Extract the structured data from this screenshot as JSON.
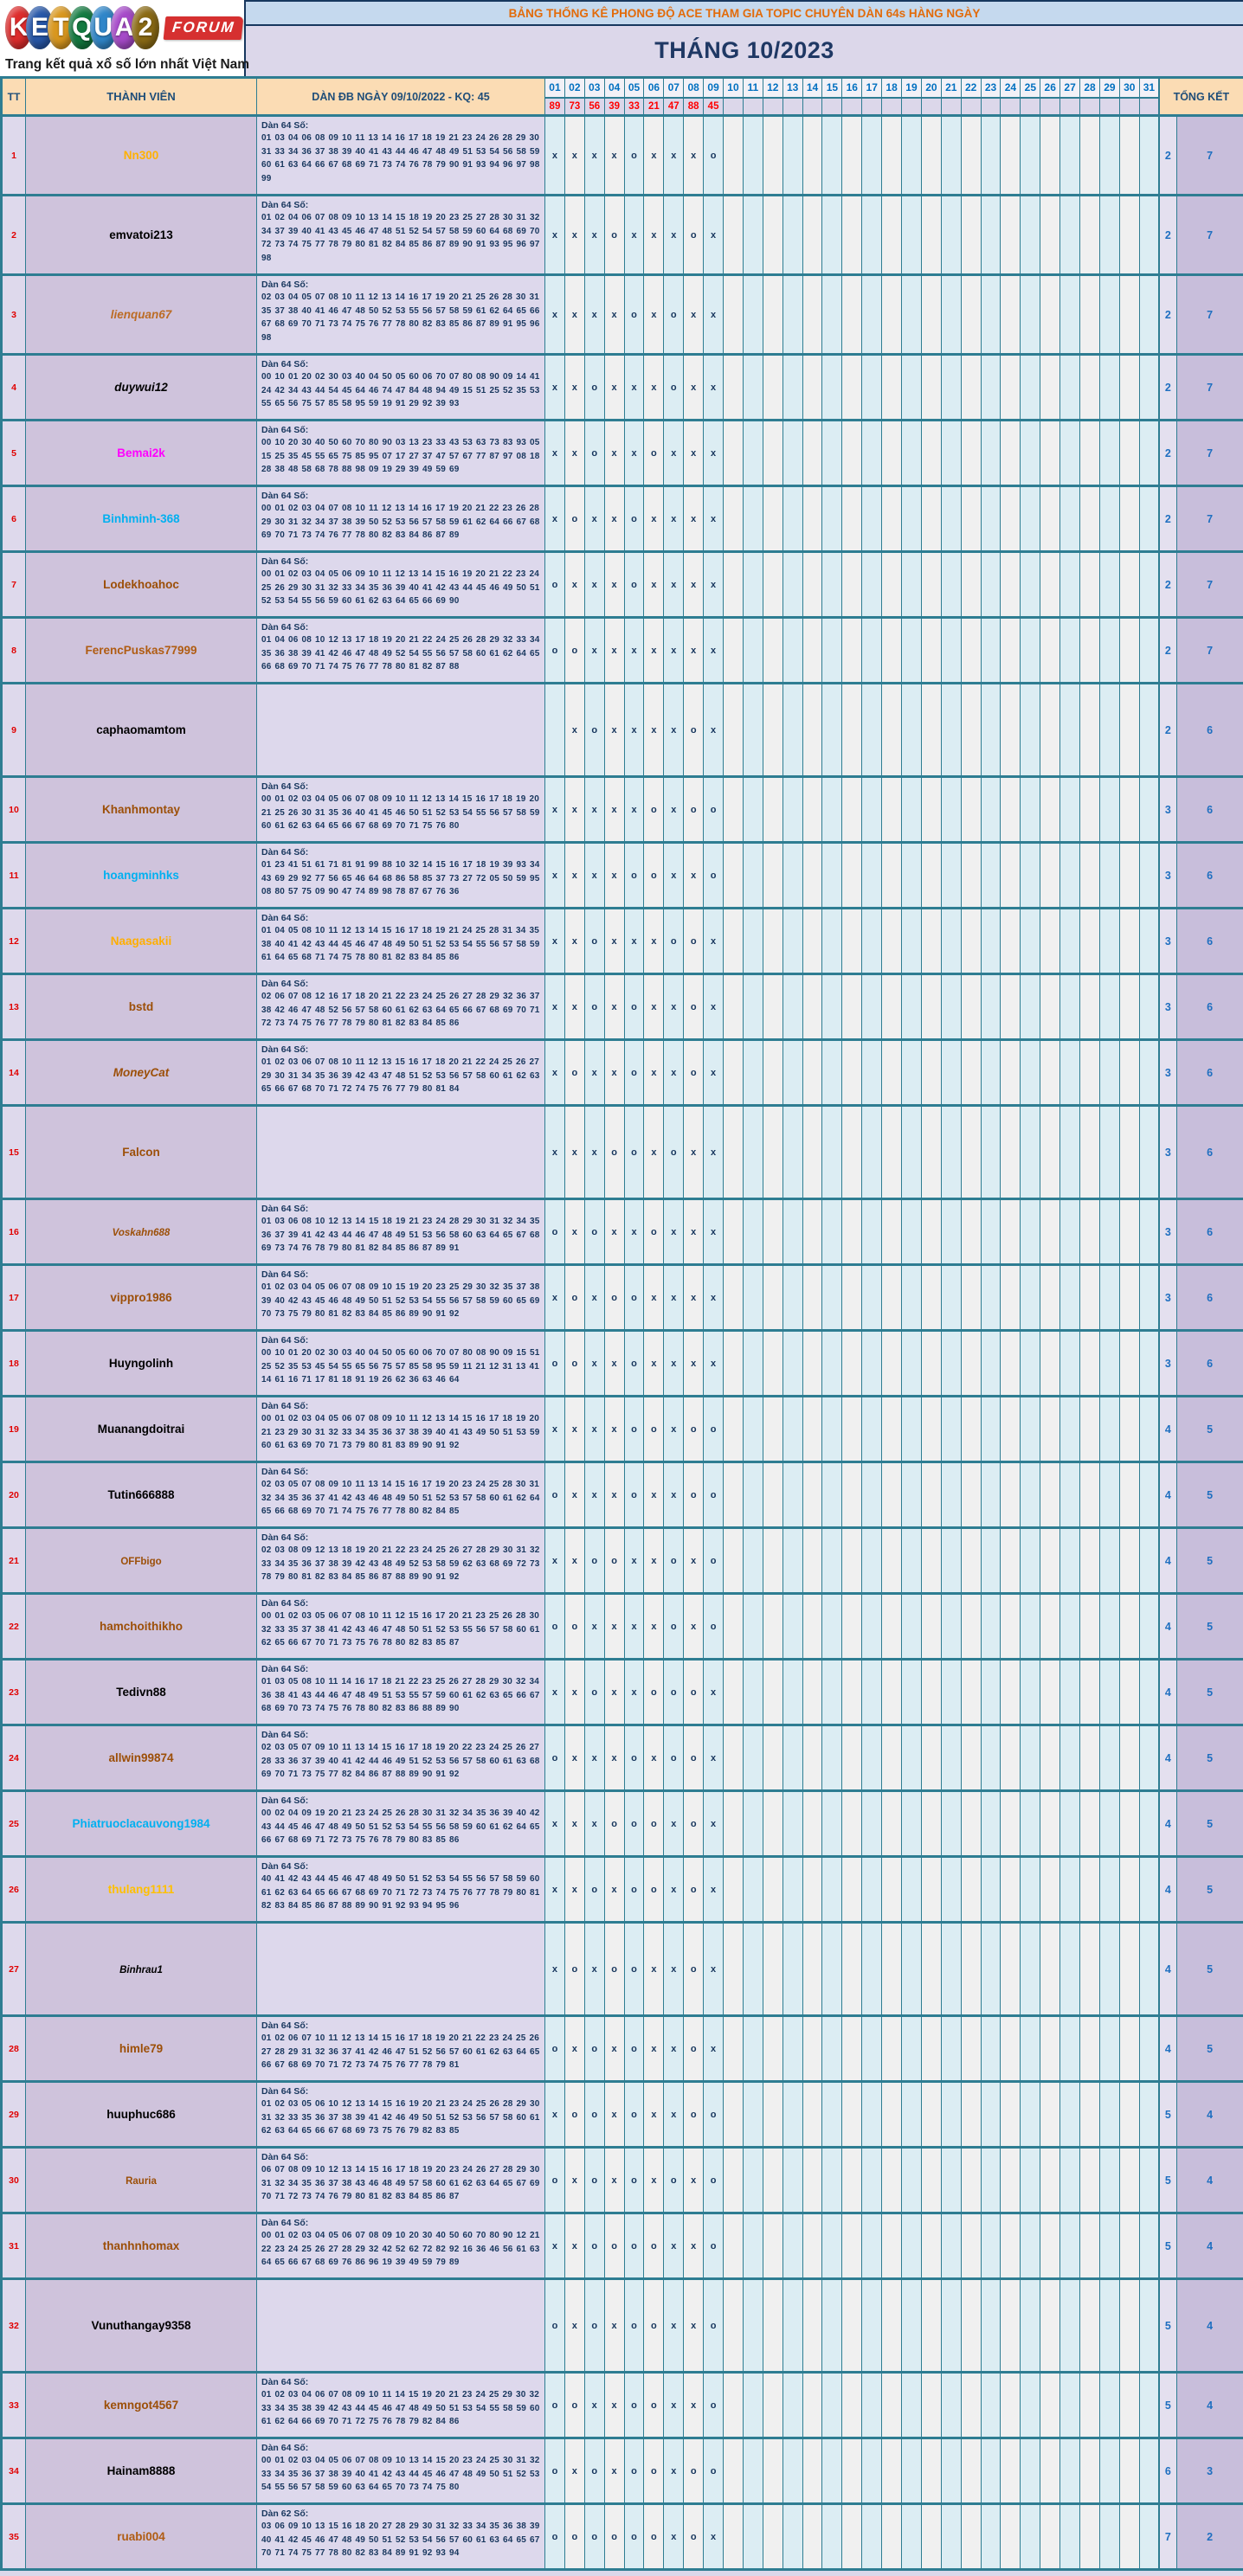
{
  "palette": {
    "border_teal": "#2e7d92",
    "peach": "#fbdcb4",
    "banner_bg": "#c5d9ee",
    "banner_text": "#e26b0a",
    "navy": "#17375e",
    "title_navy": "#1f3864",
    "day_blue": "#0070c0",
    "result_red": "#ff0000",
    "tt_red": "#e00000",
    "grid_cyan": "#dcedf3",
    "grid_gray": "#f0f0f0",
    "mark_navy": "#17365d",
    "member_cell": "#cfc3dc",
    "dan_cell": "#ddd8ec",
    "tk_blue": "#1f6fc0",
    "tk1_bg": "#e4e0ef",
    "tk2_bg": "#c8bedb",
    "page_bg": "#dcd7ea"
  },
  "logo": {
    "letters": [
      {
        "ch": "K",
        "color": "#dd2c2c"
      },
      {
        "ch": "E",
        "color": "#2757a8"
      },
      {
        "ch": "T",
        "color": "#d9971e"
      },
      {
        "ch": "Q",
        "color": "#137a40"
      },
      {
        "ch": "U",
        "color": "#2f86c9"
      },
      {
        "ch": "A",
        "color": "#a64ac9"
      },
      {
        "ch": "2",
        "color": "#8a6a14"
      }
    ],
    "forum_label": "FORUM",
    "tagline": "Trang kết quả xổ số lớn nhất Việt Nam"
  },
  "header": {
    "banner": "BẢNG THỐNG KÊ PHONG ĐỘ ACE THAM GIA TOPIC CHUYÊN DÀN 64s HÀNG NGÀY",
    "month_title": "THÁNG 10/2023",
    "col_tt": "TT",
    "col_member": "THÀNH VIÊN",
    "col_dan": "DÀN ĐB NGÀY 09/10/2022 - KQ: 45",
    "col_total": "TỔNG KẾT",
    "days": [
      "01",
      "02",
      "03",
      "04",
      "05",
      "06",
      "07",
      "08",
      "09",
      "10",
      "11",
      "12",
      "13",
      "14",
      "15",
      "16",
      "17",
      "18",
      "19",
      "20",
      "21",
      "22",
      "23",
      "24",
      "25",
      "26",
      "27",
      "28",
      "29",
      "30",
      "31"
    ],
    "results": [
      "89",
      "73",
      "56",
      "39",
      "33",
      "21",
      "47",
      "88",
      "45",
      "",
      "",
      "",
      "",
      "",
      "",
      "",
      "",
      "",
      "",
      "",
      "",
      "",
      "",
      "",
      "",
      "",
      "",
      "",
      "",
      "",
      ""
    ]
  },
  "rows": [
    {
      "tt": "1",
      "name": "Nn300",
      "color": "#ffb100",
      "style": "b",
      "dan_label": "Dàn 64 Số:",
      "dan": "01 03 04 06 08 09 10 11 13 14 16 17 18 19 21 23 24 26 28 29 30 31 33 34 36 37 38 39 40 41 43 44 46 47 48 49 51 53 54 56 58 59 60 61 63 64 66 67 68 69 71 73 74 76 78 79 90 91 93 94 96 97 98 99",
      "marks": [
        "x",
        "x",
        "x",
        "x",
        "o",
        "x",
        "x",
        "x",
        "o"
      ],
      "o": "2",
      "x": "7"
    },
    {
      "tt": "2",
      "name": "emvatoi213",
      "color": "#000000",
      "style": "b",
      "dan_label": "Dàn 64 Số:",
      "dan": "01 02 04 06 07 08 09 10 13 14 15 18 19 20 23 25 27 28 30 31 32 34 37 39 40 41 43 45 46 47 48 51 52 54 57 58 59 60 64 68 69 70 72 73 74 75 77 78 79 80 81 82 84 85 86 87 89 90 91 93 95 96 97 98",
      "marks": [
        "x",
        "x",
        "x",
        "o",
        "x",
        "x",
        "x",
        "o",
        "x"
      ],
      "o": "2",
      "x": "7"
    },
    {
      "tt": "3",
      "name": "lienquan67",
      "color": "#bc6c25",
      "style": "bi",
      "dan_label": "Dàn 64 Số:",
      "dan": "02 03 04 05 07 08 10 11 12 13 14 16 17 19 20 21 25 26 28 30 31 35 37 38 40 41 46 47 48 50 52 53 55 56 57 58 59 61 62 64 65 66 67 68 69 70 71 73 74 75 76 77 78 80 82 83 85 86 87 89 91 95 96 98",
      "marks": [
        "x",
        "x",
        "x",
        "x",
        "o",
        "x",
        "o",
        "x",
        "x"
      ],
      "o": "2",
      "x": "7"
    },
    {
      "tt": "4",
      "name": "duywui12",
      "color": "#000000",
      "style": "bi",
      "dan_label": "Dàn 64 Số:",
      "dan": "00 10 01 20 02 30 03 40 04 50 05 60 06 70 07 80 08 90 09 14 41 24 42 34 43 44 54 45 64 46 74 47 84 48 94 49 15 51 25 52 35 53 55 65 56 75 57 85 58 95 59 19 91 29 92 39 93",
      "marks": [
        "x",
        "x",
        "o",
        "x",
        "x",
        "x",
        "o",
        "x",
        "x"
      ],
      "o": "2",
      "x": "7"
    },
    {
      "tt": "5",
      "name": "Bemai2k",
      "color": "#ff00ff",
      "style": "b",
      "dan_label": "Dàn 64 Số:",
      "dan": "00 10 20 30 40 50 60 70 80 90 03 13 23 33 43 53 63 73 83 93 05 15 25 35 45 55 65 75 85 95 07 17 27 37 47 57 67 77 87 97 08 18 28 38 48 58 68 78 88 98 09 19 29 39 49 59 69",
      "marks": [
        "x",
        "x",
        "o",
        "x",
        "x",
        "o",
        "x",
        "x",
        "x"
      ],
      "o": "2",
      "x": "7"
    },
    {
      "tt": "6",
      "name": "Binhminh-368",
      "color": "#00b0f0",
      "style": "b",
      "dan_label": "Dàn 64 Số:",
      "dan": "00 01 02 03 04 07 08 10 11 12 13 14 16 17 19 20 21 22 23 26 28 29 30 31 32 34 37 38 39 50 52 53 56 57 58 59 61 62 64 66 67 68 69 70 71 73 74 76 77 78 80 82 83 84 86 87 89",
      "marks": [
        "x",
        "o",
        "x",
        "x",
        "o",
        "x",
        "x",
        "x",
        "x"
      ],
      "o": "2",
      "x": "7"
    },
    {
      "tt": "7",
      "name": "Lodekhoahoc",
      "color": "#9c4f08",
      "style": "b",
      "dan_label": "Dàn 64 Số:",
      "dan": "00 01 02 03 04 05 06 09 10 11 12 13 14 15 16 19 20 21 22 23 24 25 26 29 30 31 32 33 34 35 36 39 40 41 42 43 44 45 46 49 50 51 52 53 54 55 56 59 60 61 62 63 64 65 66 69 90",
      "marks": [
        "o",
        "x",
        "x",
        "x",
        "o",
        "x",
        "x",
        "x",
        "x"
      ],
      "o": "2",
      "x": "7"
    },
    {
      "tt": "8",
      "name": "FerencPuskas77999",
      "color": "#b05c12",
      "style": "b",
      "dan_label": "Dàn 64 Số:",
      "dan": "01 04 06 08 10 12 13 17 18 19 20 21 22 24 25 26 28 29 32 33 34 35 36 38 39 41 42 46 47 48 49 52 54 55 56 57 58 60 61 62 64 65 66 68 69 70 71 74 75 76 77 78 80 81 82 87 88",
      "marks": [
        "o",
        "o",
        "x",
        "x",
        "x",
        "x",
        "x",
        "x",
        "x"
      ],
      "o": "2",
      "x": "7"
    },
    {
      "tt": "9",
      "name": "caphaomamtom",
      "color": "#000000",
      "style": "b",
      "dan_label": "",
      "dan": "",
      "marks": [
        "",
        "x",
        "o",
        "x",
        "x",
        "x",
        "x",
        "o",
        "x"
      ],
      "o": "2",
      "x": "6"
    },
    {
      "tt": "10",
      "name": "Khanhmontay",
      "color": "#9c4f08",
      "style": "b",
      "dan_label": "Dàn 64 Số:",
      "dan": "00 01 02 03 04 05 06 07 08 09 10 11 12 13 14 15 16 17 18 19 20 21 25 26 30 31 35 36 40 41 45 46 50 51 52 53 54 55 56 57 58 59 60 61 62 63 64 65 66 67 68 69 70 71 75 76 80",
      "marks": [
        "x",
        "x",
        "x",
        "x",
        "x",
        "o",
        "x",
        "o",
        "o"
      ],
      "o": "3",
      "x": "6"
    },
    {
      "tt": "11",
      "name": "hoangminhks",
      "color": "#00b0f0",
      "style": "b",
      "dan_label": "Dàn 64 Số:",
      "dan": "01 23 41 51 61 71 81 91 99 88 10 32 14 15 16 17 18 19 39 93 34 43 69 29 92 77 56 65 46 64 68 86 58 85 37 73 27 72 05 50 59 95 08 80 57 75 09 90 47 74 89 98 78 87 67 76 36",
      "marks": [
        "x",
        "x",
        "x",
        "x",
        "o",
        "o",
        "x",
        "x",
        "o"
      ],
      "o": "3",
      "x": "6"
    },
    {
      "tt": "12",
      "name": "Naagasakii",
      "color": "#ffae00",
      "style": "b",
      "dan_label": "Dàn 64 Số:",
      "dan": "01 04 05 08 10 11 12 13 14 15 16 17 18 19 21 24 25 28 31 34 35 38 40 41 42 43 44 45 46 47 48 49 50 51 52 53 54 55 56 57 58 59 61 64 65 68 71 74 75 78 80 81 82 83 84 85 86",
      "marks": [
        "x",
        "x",
        "o",
        "x",
        "x",
        "x",
        "o",
        "o",
        "x"
      ],
      "o": "3",
      "x": "6"
    },
    {
      "tt": "13",
      "name": "bstd",
      "color": "#9c4f08",
      "style": "b",
      "dan_label": "Dàn 64 Số:",
      "dan": "02 06 07 08 12 16 17 18 20 21 22 23 24 25 26 27 28 29 32 36 37 38 42 46 47 48 52 56 57 58 60 61 62 63 64 65 66 67 68 69 70 71 72 73 74 75 76 77 78 79 80 81 82 83 84 85 86",
      "marks": [
        "x",
        "x",
        "o",
        "x",
        "o",
        "x",
        "x",
        "o",
        "x"
      ],
      "o": "3",
      "x": "6"
    },
    {
      "tt": "14",
      "name": "MoneyCat",
      "color": "#9c4f08",
      "style": "bi",
      "dan_label": "Dàn 64 Số:",
      "dan": "01 02 03 06 07 08 10 11 12 13 15 16 17 18 20 21 22 24 25 26 27 29 30 31 34 35 36 39 42 43 47 48 51 52 53 56 57 58 60 61 62 63 65 66 67 68 70 71 72 74 75 76 77 79 80 81 84",
      "marks": [
        "x",
        "o",
        "x",
        "x",
        "o",
        "x",
        "x",
        "o",
        "x"
      ],
      "o": "3",
      "x": "6"
    },
    {
      "tt": "15",
      "name": "Falcon",
      "color": "#9c4f08",
      "style": "b",
      "dan_label": "",
      "dan": "",
      "marks": [
        "x",
        "x",
        "x",
        "o",
        "o",
        "x",
        "o",
        "x",
        "x"
      ],
      "o": "3",
      "x": "6"
    },
    {
      "tt": "16",
      "name": "Voskahn688",
      "color": "#9c4f08",
      "style": "bism",
      "dan_label": "Dàn 64 Số:",
      "dan": "01 03 06 08 10 12 13 14 15 18 19 21 23 24 28 29 30 31 32 34 35 36 37 39 41 42 43 44 46 47 48 49 51 53 56 58 60 63 64 65 67 68 69 73 74 76 78 79 80 81 82 84 85 86 87 89 91",
      "marks": [
        "o",
        "x",
        "o",
        "x",
        "x",
        "o",
        "x",
        "x",
        "x"
      ],
      "o": "3",
      "x": "6"
    },
    {
      "tt": "17",
      "name": "vippro1986",
      "color": "#9c4f08",
      "style": "b",
      "dan_label": "Dàn 64 Số:",
      "dan": "01 02 03 04 05 06 07 08 09 10 15 19 20 23 25 29 30 32 35 37 38 39 40 42 43 45 46 48 49 50 51 52 53 54 55 56 57 58 59 60 65 69 70 73 75 79 80 81 82 83 84 85 86 89 90 91 92",
      "marks": [
        "x",
        "o",
        "x",
        "o",
        "o",
        "x",
        "x",
        "x",
        "x"
      ],
      "o": "3",
      "x": "6"
    },
    {
      "tt": "18",
      "name": "Huyngolinh",
      "color": "#000000",
      "style": "b",
      "dan_label": "Dàn 64 Số:",
      "dan": "00 10 01 20 02 30 03 40 04 50 05 60 06 70 07 80 08 90 09 15 51 25 52 35 53 45 54 55 65 56 75 57 85 58 95 59 11 21 12 31 13 41 14 61 16 71 17 81 18 91 19 26 62 36 63 46 64",
      "marks": [
        "o",
        "o",
        "x",
        "x",
        "o",
        "x",
        "x",
        "x",
        "x"
      ],
      "o": "3",
      "x": "6"
    },
    {
      "tt": "19",
      "name": "Muanangdoitrai",
      "color": "#000000",
      "style": "b",
      "dan_label": "Dàn 64 Số:",
      "dan": "00 01 02 03 04 05 06 07 08 09 10 11 12 13 14 15 16 17 18 19 20 21 23 29 30 31 32 33 34 35 36 37 38 39 40 41 43 49 50 51 53 59 60 61 63 69 70 71 73 79 80 81 83 89 90 91 92",
      "marks": [
        "x",
        "x",
        "x",
        "x",
        "o",
        "o",
        "x",
        "o",
        "o"
      ],
      "o": "4",
      "x": "5"
    },
    {
      "tt": "20",
      "name": "Tutin666888",
      "color": "#000000",
      "style": "b",
      "dan_label": "Dàn 64 Số:",
      "dan": "02 03 05 07 08 09 10 11 13 14 15 16 17 19 20 23 24 25 28 30 31 32 34 35 36 37 41 42 43 46 48 49 50 51 52 53 57 58 60 61 62 64 65 66 68 69 70 71 74 75 76 77 78 80 82 84 85",
      "marks": [
        "o",
        "x",
        "x",
        "x",
        "o",
        "x",
        "x",
        "o",
        "o"
      ],
      "o": "4",
      "x": "5"
    },
    {
      "tt": "21",
      "name": "OFFbigo",
      "color": "#9c4f08",
      "style": "bsm",
      "dan_label": "Dàn 64 Số:",
      "dan": "02 03 08 09 12 13 18 19 20 21 22 23 24 25 26 27 28 29 30 31 32 33 34 35 36 37 38 39 42 43 48 49 52 53 58 59 62 63 68 69 72 73 78 79 80 81 82 83 84 85 86 87 88 89 90 91 92",
      "marks": [
        "x",
        "x",
        "o",
        "o",
        "x",
        "x",
        "o",
        "x",
        "o"
      ],
      "o": "4",
      "x": "5"
    },
    {
      "tt": "22",
      "name": "hamchoithikho",
      "color": "#9c4f08",
      "style": "b",
      "dan_label": "Dàn 64 Số:",
      "dan": "00 01 02 03 05 06 07 08 10 11 12 15 16 17 20 21 23 25 26 28 30 32 33 35 37 38 41 42 43 46 47 48 50 51 52 53 55 56 57 58 60 61 62 65 66 67 70 71 73 75 76 78 80 82 83 85 87",
      "marks": [
        "o",
        "o",
        "x",
        "x",
        "x",
        "x",
        "o",
        "x",
        "o"
      ],
      "o": "4",
      "x": "5"
    },
    {
      "tt": "23",
      "name": "Tedivn88",
      "color": "#000000",
      "style": "b",
      "dan_label": "Dàn 64 Số:",
      "dan": "01 03 05 08 10 11 14 16 17 18 21 22 23 25 26 27 28 29 30 32 34 36 38 41 43 44 46 47 48 49 51 53 55 57 59 60 61 62 63 65 66 67 68 69 70 73 74 75 76 78 80 82 83 86 88 89 90",
      "marks": [
        "x",
        "x",
        "o",
        "x",
        "x",
        "o",
        "o",
        "o",
        "x"
      ],
      "o": "4",
      "x": "5"
    },
    {
      "tt": "24",
      "name": "allwin99874",
      "color": "#9c4f08",
      "style": "b",
      "dan_label": "Dàn 64 Số:",
      "dan": "02 03 05 07 09 10 11 13 14 15 16 17 18 19 20 22 23 24 25 26 27 28 33 36 37 39 40 41 42 44 46 49 51 52 53 56 57 58 60 61 63 68 69 70 71 73 75 77 82 84 86 87 88 89 90 91 92",
      "marks": [
        "o",
        "x",
        "x",
        "x",
        "o",
        "x",
        "o",
        "o",
        "x"
      ],
      "o": "4",
      "x": "5"
    },
    {
      "tt": "25",
      "name": "Phiatruoclacauvong1984",
      "color": "#00b0f0",
      "style": "b",
      "dan_label": "Dàn 64 Số:",
      "dan": "00 02 04 09 19 20 21 23 24 25 26 28 30 31 32 34 35 36 39 40 42 43 44 45 46 47 48 49 50 51 52 53 54 55 56 58 59 60 61 62 64 65 66 67 68 69 71 72 73 75 76 78 79 80 83 85 86",
      "marks": [
        "x",
        "x",
        "x",
        "o",
        "o",
        "o",
        "x",
        "o",
        "x"
      ],
      "o": "4",
      "x": "5"
    },
    {
      "tt": "26",
      "name": "thulang1111",
      "color": "#ffc000",
      "style": "b",
      "dan_label": "Dàn 64 Số:",
      "dan": "40 41 42 43 44 45 46 47 48 49 50 51 52 53 54 55 56 57 58 59 60 61 62 63 64 65 66 67 68 69 70 71 72 73 74 75 76 77 78 79 80 81 82 83 84 85 86 87 88 89 90 91 92 93 94 95 96",
      "marks": [
        "x",
        "x",
        "o",
        "x",
        "o",
        "o",
        "x",
        "o",
        "x"
      ],
      "o": "4",
      "x": "5"
    },
    {
      "tt": "27",
      "name": "Binhrau1",
      "color": "#000000",
      "style": "bism",
      "dan_label": "",
      "dan": "",
      "marks": [
        "x",
        "o",
        "x",
        "o",
        "o",
        "x",
        "x",
        "o",
        "x"
      ],
      "o": "4",
      "x": "5"
    },
    {
      "tt": "28",
      "name": "himle79",
      "color": "#9c4f08",
      "style": "b",
      "dan_label": "Dàn 64 Số:",
      "dan": "01 02 06 07 10 11 12 13 14 15 16 17 18 19 20 21 22 23 24 25 26 27 28 29 31 32 36 37 41 42 46 47 51 52 56 57 60 61 62 63 64 65 66 67 68 69 70 71 72 73 74 75 76 77 78 79 81",
      "marks": [
        "o",
        "x",
        "o",
        "x",
        "o",
        "x",
        "x",
        "o",
        "x"
      ],
      "o": "4",
      "x": "5"
    },
    {
      "tt": "29",
      "name": "huuphuc686",
      "color": "#000000",
      "style": "b",
      "dan_label": "Dàn 64 Số:",
      "dan": "01 02 03 05 06 10 12 13 14 15 16 19 20 21 23 24 25 26 28 29 30 31 32 33 35 36 37 38 39 41 42 46 49 50 51 52 53 56 57 58 60 61 62 63 64 65 66 67 68 69 73 75 76 79 82 83 85",
      "marks": [
        "x",
        "o",
        "o",
        "x",
        "o",
        "x",
        "x",
        "o",
        "o"
      ],
      "o": "5",
      "x": "4"
    },
    {
      "tt": "30",
      "name": "Rauria",
      "color": "#9c4f08",
      "style": "bsm",
      "dan_label": "Dàn 64 Số:",
      "dan": "06 07 08 09 10 12 13 14 15 16 17 18 19 20 23 24 26 27 28 29 30 31 32 34 35 36 37 38 43 46 48 49 57 58 60 61 62 63 64 65 67 69 70 71 72 73 74 76 79 80 81 82 83 84 85 86 87",
      "marks": [
        "o",
        "x",
        "o",
        "x",
        "o",
        "x",
        "o",
        "x",
        "o"
      ],
      "o": "5",
      "x": "4"
    },
    {
      "tt": "31",
      "name": "thanhnhomax",
      "color": "#9c4f08",
      "style": "b",
      "dan_label": "Dàn 64 Số:",
      "dan": "00 01 02 03 04 05 06 07 08 09 10 20 30 40 50 60 70 80 90 12 21 22 23 24 25 26 27 28 29 32 42 52 62 72 82 92 16 36 46 56 61 63 64 65 66 67 68 69 76 86 96 19 39 49 59 79 89",
      "marks": [
        "x",
        "x",
        "o",
        "o",
        "o",
        "o",
        "x",
        "x",
        "o"
      ],
      "o": "5",
      "x": "4"
    },
    {
      "tt": "32",
      "name": "Vunuthangay9358",
      "color": "#000000",
      "style": "b",
      "dan_label": "",
      "dan": "",
      "marks": [
        "o",
        "x",
        "o",
        "x",
        "o",
        "o",
        "x",
        "x",
        "o"
      ],
      "o": "5",
      "x": "4"
    },
    {
      "tt": "33",
      "name": "kemngot4567",
      "color": "#9c4f08",
      "style": "b",
      "dan_label": "Dàn 64 Số:",
      "dan": "01 02 03 04 06 07 08 09 10 11 14 15 19 20 21 23 24 25 29 30 32 33 34 35 38 39 42 43 44 45 46 47 48 49 50 51 53 54 55 58 59 60 61 62 64 66 69 70 71 72 75 76 78 79 82 84 86",
      "marks": [
        "o",
        "o",
        "x",
        "x",
        "o",
        "o",
        "x",
        "x",
        "o"
      ],
      "o": "5",
      "x": "4"
    },
    {
      "tt": "34",
      "name": "Hainam8888",
      "color": "#000000",
      "style": "b",
      "dan_label": "Dàn 64 Số:",
      "dan": "00 01 02 03 04 05 06 07 08 09 10 13 14 15 20 23 24 25 30 31 32 33 34 35 36 37 38 39 40 41 42 43 44 45 46 47 48 49 50 51 52 53 54 55 56 57 58 59 60 63 64 65 70 73 74 75 80",
      "marks": [
        "o",
        "x",
        "o",
        "x",
        "o",
        "o",
        "x",
        "o",
        "o"
      ],
      "o": "6",
      "x": "3"
    },
    {
      "tt": "35",
      "name": "ruabi004",
      "color": "#b05c12",
      "style": "b",
      "dan_label": "Dàn 62 Số:",
      "dan": "03 06 09 10 13 15 16 18 20 27 28 29 30 31 32 33 34 35 36 38 39 40 41 42 45 46 47 48 49 50 51 52 53 54 56 57 60 61 63 64 65 67 70 71 74 75 77 78 80 82 83 84 89 91 92 93 94",
      "marks": [
        "o",
        "o",
        "o",
        "o",
        "o",
        "o",
        "x",
        "o",
        "x"
      ],
      "o": "7",
      "x": "2"
    }
  ]
}
